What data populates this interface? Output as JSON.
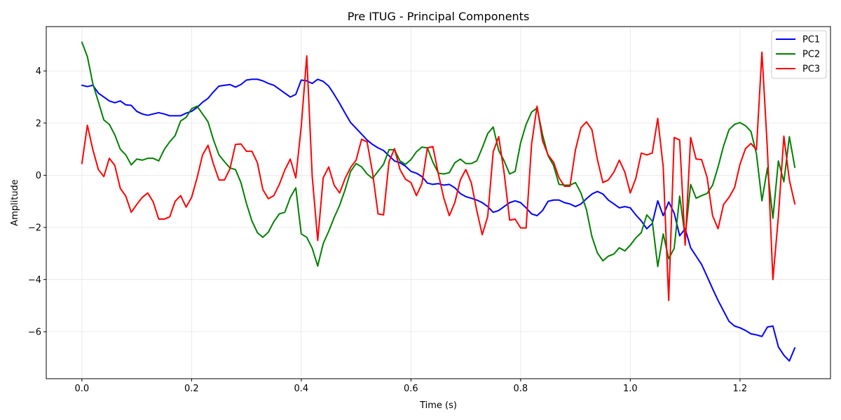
{
  "chart_data": {
    "type": "line",
    "title": "Pre ITUG - Principal Components",
    "xlabel": "Time (s)",
    "ylabel": "Amplitude",
    "xlim": [
      -0.065,
      1.365
    ],
    "ylim": [
      -7.8,
      5.7
    ],
    "xticks": [
      0.0,
      0.2,
      0.4,
      0.6,
      0.8,
      1.0,
      1.2
    ],
    "xtick_labels": [
      "0.0",
      "0.2",
      "0.4",
      "0.6",
      "0.8",
      "1.0",
      "1.2"
    ],
    "yticks": [
      -6,
      -4,
      -2,
      0,
      2,
      4
    ],
    "ytick_labels": [
      "−6",
      "−4",
      "−2",
      "0",
      "2",
      "4"
    ],
    "grid": true,
    "legend_position": "top-right",
    "x": [
      0.0,
      0.01,
      0.02,
      0.03,
      0.04,
      0.05,
      0.06,
      0.07,
      0.08,
      0.09,
      0.1,
      0.11,
      0.12,
      0.13,
      0.14,
      0.15,
      0.16,
      0.17,
      0.18,
      0.19,
      0.2,
      0.21,
      0.22,
      0.23,
      0.24,
      0.25,
      0.26,
      0.27,
      0.28,
      0.29,
      0.3,
      0.31,
      0.32,
      0.33,
      0.34,
      0.35,
      0.36,
      0.37,
      0.38,
      0.39,
      0.4,
      0.41,
      0.42,
      0.43,
      0.44,
      0.45,
      0.46,
      0.47,
      0.48,
      0.49,
      0.5,
      0.51,
      0.52,
      0.53,
      0.54,
      0.55,
      0.56,
      0.57,
      0.58,
      0.59,
      0.6,
      0.61,
      0.62,
      0.63,
      0.64,
      0.65,
      0.66,
      0.67,
      0.68,
      0.69,
      0.7,
      0.71,
      0.72,
      0.73,
      0.74,
      0.75,
      0.76,
      0.77,
      0.78,
      0.79,
      0.8,
      0.81,
      0.82,
      0.83,
      0.84,
      0.85,
      0.86,
      0.87,
      0.88,
      0.89,
      0.9,
      0.91,
      0.92,
      0.93,
      0.94,
      0.95,
      0.96,
      0.97,
      0.98,
      0.99,
      1.0,
      1.01,
      1.02,
      1.03,
      1.04,
      1.05,
      1.06,
      1.07,
      1.08,
      1.09,
      1.1,
      1.11,
      1.12,
      1.13,
      1.14,
      1.15,
      1.16,
      1.17,
      1.18,
      1.19,
      1.2,
      1.21,
      1.22,
      1.23,
      1.24,
      1.25,
      1.26,
      1.27,
      1.28,
      1.29,
      1.3
    ],
    "series": [
      {
        "name": "PC1",
        "color": "#0000ff",
        "values": [
          3.45,
          3.4,
          3.45,
          3.15,
          3.0,
          2.85,
          2.78,
          2.85,
          2.7,
          2.68,
          2.45,
          2.35,
          2.3,
          2.35,
          2.4,
          2.35,
          2.28,
          2.28,
          2.28,
          2.38,
          2.45,
          2.6,
          2.8,
          2.95,
          3.2,
          3.42,
          3.45,
          3.48,
          3.38,
          3.48,
          3.65,
          3.68,
          3.68,
          3.62,
          3.52,
          3.45,
          3.3,
          3.15,
          3.0,
          3.1,
          3.65,
          3.62,
          3.52,
          3.68,
          3.6,
          3.42,
          3.1,
          2.75,
          2.38,
          2.02,
          1.8,
          1.58,
          1.35,
          1.18,
          1.05,
          0.95,
          0.75,
          0.55,
          0.48,
          0.35,
          0.15,
          0.08,
          -0.05,
          -0.3,
          -0.35,
          -0.32,
          -0.38,
          -0.35,
          -0.48,
          -0.7,
          -0.82,
          -0.88,
          -0.95,
          -1.05,
          -1.2,
          -1.42,
          -1.35,
          -1.2,
          -1.05,
          -0.98,
          -1.05,
          -1.25,
          -1.48,
          -1.55,
          -1.35,
          -1.0,
          -0.95,
          -0.95,
          -1.05,
          -1.1,
          -1.2,
          -1.1,
          -0.9,
          -0.72,
          -0.62,
          -0.72,
          -0.95,
          -1.1,
          -1.25,
          -1.2,
          -1.25,
          -1.52,
          -1.75,
          -2.05,
          -1.85,
          -0.98,
          -1.55,
          -1.02,
          -1.45,
          -2.32,
          -2.05,
          -2.78,
          -3.1,
          -3.42,
          -3.88,
          -4.35,
          -4.8,
          -5.2,
          -5.6,
          -5.78,
          -5.85,
          -5.95,
          -6.08,
          -6.12,
          -6.18,
          -5.82,
          -5.78,
          -6.58,
          -6.9,
          -7.12,
          -6.62
        ]
      },
      {
        "name": "PC2",
        "color": "#008000",
        "values": [
          5.1,
          4.55,
          3.5,
          2.82,
          2.12,
          1.95,
          1.55,
          1.0,
          0.78,
          0.4,
          0.62,
          0.58,
          0.65,
          0.65,
          0.55,
          0.98,
          1.28,
          1.52,
          2.08,
          2.22,
          2.55,
          2.65,
          2.35,
          2.05,
          1.35,
          0.78,
          0.52,
          0.28,
          0.22,
          -0.28,
          -1.08,
          -1.75,
          -2.2,
          -2.38,
          -2.18,
          -1.78,
          -1.48,
          -1.42,
          -0.85,
          -0.48,
          -2.25,
          -2.38,
          -2.8,
          -3.48,
          -2.62,
          -2.15,
          -1.62,
          -1.15,
          -0.55,
          0.15,
          0.45,
          0.32,
          0.05,
          -0.12,
          0.15,
          0.42,
          0.98,
          0.98,
          0.55,
          0.42,
          0.6,
          0.9,
          1.08,
          1.05,
          0.5,
          0.08,
          0.05,
          0.1,
          0.48,
          0.62,
          0.45,
          0.45,
          0.55,
          1.05,
          1.6,
          1.85,
          0.95,
          0.55,
          0.05,
          0.15,
          1.25,
          1.95,
          2.42,
          2.58,
          1.55,
          0.75,
          0.38,
          -0.35,
          -0.38,
          -0.38,
          -0.28,
          -0.68,
          -1.32,
          -2.35,
          -2.98,
          -3.28,
          -3.1,
          -3.02,
          -2.78,
          -2.9,
          -2.68,
          -2.4,
          -2.2,
          -1.52,
          -1.75,
          -3.5,
          -2.25,
          -3.2,
          -2.8,
          -0.8,
          -2.38,
          -0.35,
          -0.88,
          -0.78,
          -0.7,
          -0.38,
          0.32,
          1.12,
          1.75,
          1.95,
          2.02,
          1.9,
          1.68,
          0.82,
          -0.98,
          0.28,
          -1.65,
          0.55,
          -0.25,
          1.48,
          0.3
        ]
      },
      {
        "name": "PC3",
        "color": "#ff0000",
        "values": [
          0.45,
          1.92,
          0.98,
          0.22,
          -0.05,
          0.65,
          0.38,
          -0.5,
          -0.8,
          -1.42,
          -1.12,
          -0.85,
          -0.68,
          -1.02,
          -1.68,
          -1.68,
          -1.6,
          -1.0,
          -0.78,
          -1.22,
          -0.85,
          -0.1,
          0.78,
          1.15,
          0.42,
          -0.18,
          -0.18,
          0.25,
          1.18,
          1.2,
          0.92,
          0.92,
          0.48,
          -0.55,
          -0.9,
          -0.78,
          -0.35,
          0.2,
          0.62,
          -0.1,
          1.88,
          4.58,
          -0.05,
          -2.5,
          -0.1,
          0.32,
          -0.38,
          -0.68,
          -0.12,
          0.3,
          0.58,
          1.38,
          1.28,
          0.1,
          -1.48,
          -1.52,
          0.52,
          1.02,
          0.22,
          -0.15,
          -0.28,
          -0.78,
          -0.32,
          1.05,
          1.1,
          0.05,
          -0.88,
          -1.55,
          -1.05,
          -0.18,
          0.22,
          -0.28,
          -1.35,
          -2.28,
          -1.58,
          0.9,
          1.48,
          0.08,
          -1.72,
          -1.68,
          -2.02,
          -2.02,
          1.2,
          2.65,
          1.32,
          0.78,
          0.5,
          -0.1,
          -0.42,
          -0.42,
          0.98,
          1.82,
          2.05,
          1.75,
          0.6,
          -0.28,
          -0.18,
          0.12,
          0.58,
          0.12,
          -0.68,
          -0.12,
          0.85,
          0.78,
          0.85,
          2.18,
          0.32,
          -4.8,
          1.45,
          1.35,
          -2.68,
          1.45,
          0.62,
          0.6,
          -0.08,
          -1.55,
          -2.05,
          -1.12,
          -0.85,
          -0.48,
          0.42,
          1.02,
          1.22,
          0.98,
          4.72,
          0.98,
          -4.0,
          -1.58,
          1.5,
          -0.18,
          -1.1
        ]
      }
    ]
  }
}
